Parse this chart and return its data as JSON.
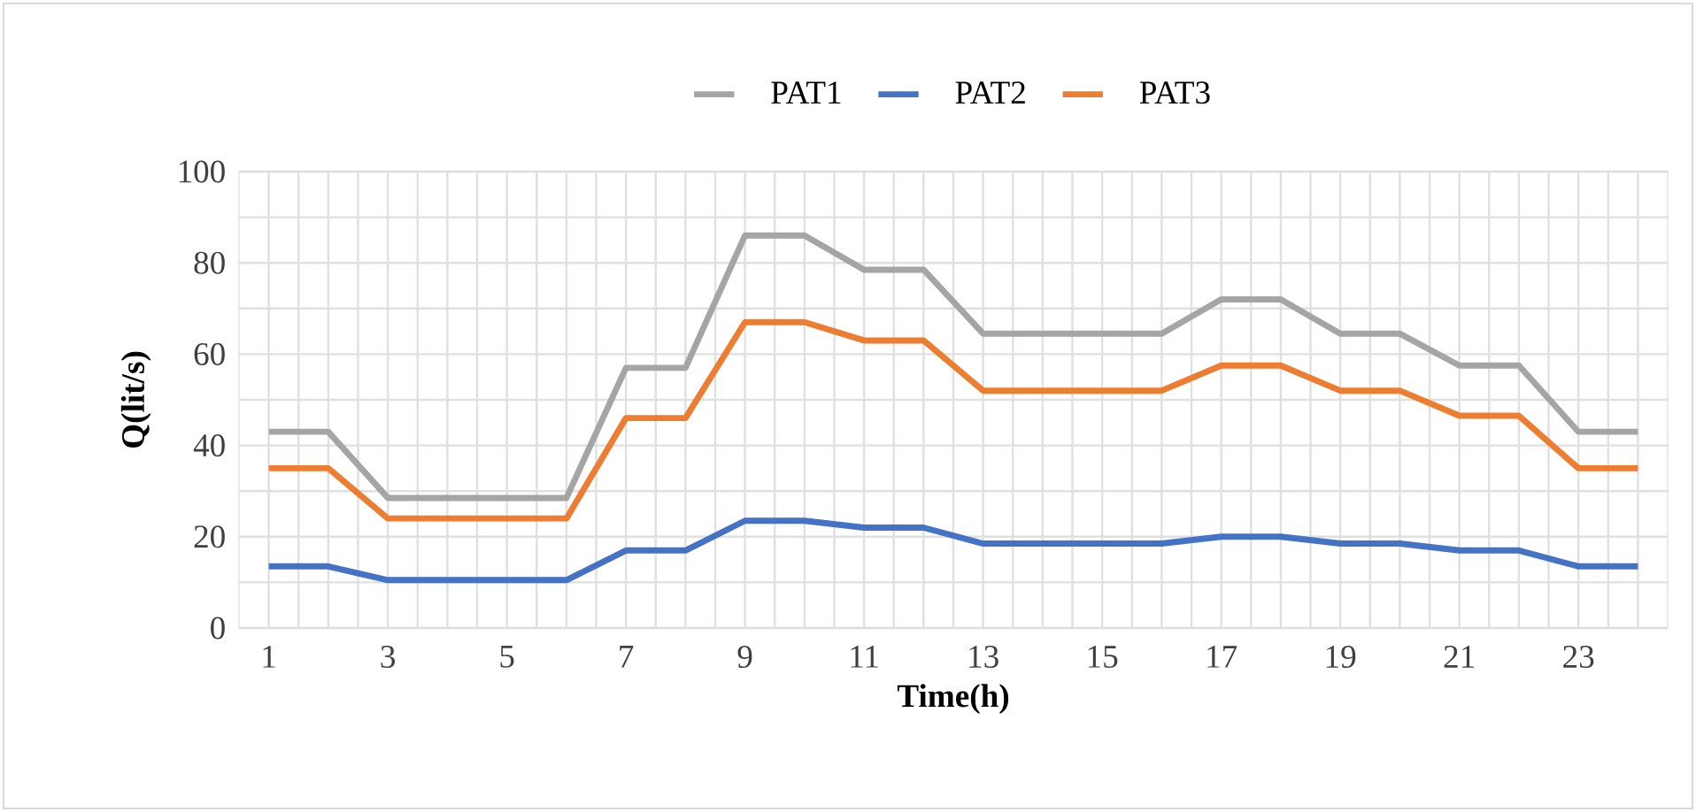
{
  "chart_data": {
    "type": "line",
    "xlabel": "Time(h)",
    "ylabel": "Q(lit/s)",
    "categories": [
      "1",
      null,
      "3",
      null,
      "5",
      null,
      "7",
      null,
      "9",
      null,
      "11",
      null,
      "13",
      null,
      "15",
      null,
      "17",
      null,
      "19",
      null,
      "21",
      null,
      "23",
      null
    ],
    "series": [
      {
        "name": "PAT1",
        "color": "#a5a5a5",
        "values": [
          43,
          43,
          28.5,
          28.5,
          28.5,
          28.5,
          57,
          57,
          86,
          86,
          78.5,
          78.5,
          64.5,
          64.5,
          64.5,
          64.5,
          72,
          72,
          64.5,
          64.5,
          57.5,
          57.5,
          43,
          43
        ]
      },
      {
        "name": "PAT2",
        "color": "#4472c4",
        "values": [
          13.5,
          13.5,
          10.5,
          10.5,
          10.5,
          10.5,
          17,
          17,
          23.5,
          23.5,
          22,
          22,
          18.5,
          18.5,
          18.5,
          18.5,
          20,
          20,
          18.5,
          18.5,
          17,
          17,
          13.5,
          13.5
        ]
      },
      {
        "name": "PAT3",
        "color": "#ed7d31",
        "values": [
          35,
          35,
          24,
          24,
          24,
          24,
          46,
          46,
          67,
          67,
          63,
          63,
          52,
          52,
          52,
          52,
          57.5,
          57.5,
          52,
          52,
          46.5,
          46.5,
          35,
          35
        ]
      }
    ],
    "ylim": [
      0,
      100
    ],
    "yticks": [
      0,
      20,
      40,
      60,
      80,
      100
    ],
    "grid": true,
    "legend": "top",
    "marker": "none",
    "line_style": "solid"
  }
}
